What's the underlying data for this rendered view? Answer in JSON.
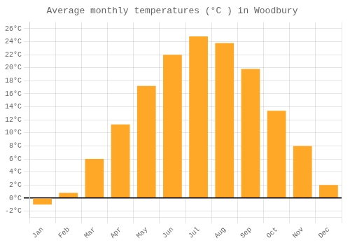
{
  "chart_data": {
    "type": "bar",
    "title": "Average monthly temperatures (°C ) in Woodbury",
    "categories": [
      "Jan",
      "Feb",
      "Mar",
      "Apr",
      "May",
      "Jun",
      "Jul",
      "Aug",
      "Sep",
      "Oct",
      "Nov",
      "Dec"
    ],
    "values": [
      -1.0,
      0.8,
      6.0,
      11.3,
      17.2,
      22.0,
      24.8,
      23.8,
      19.8,
      13.4,
      8.0,
      2.0
    ],
    "color": "#FFA726",
    "ylim": [
      -3.0,
      27.0
    ],
    "yticks": [
      {
        "value": -2,
        "label": "-2°C"
      },
      {
        "value": 0,
        "label": "0°C"
      },
      {
        "value": 2,
        "label": "2°C"
      },
      {
        "value": 4,
        "label": "4°C"
      },
      {
        "value": 6,
        "label": "6°C"
      },
      {
        "value": 8,
        "label": "8°C"
      },
      {
        "value": 10,
        "label": "10°C"
      },
      {
        "value": 12,
        "label": "12°C"
      },
      {
        "value": 14,
        "label": "14°C"
      },
      {
        "value": 16,
        "label": "16°C"
      },
      {
        "value": 18,
        "label": "18°C"
      },
      {
        "value": 20,
        "label": "20°C"
      },
      {
        "value": 22,
        "label": "22°C"
      },
      {
        "value": 24,
        "label": "24°C"
      },
      {
        "value": 26,
        "label": "26°C"
      }
    ],
    "grid": true
  }
}
